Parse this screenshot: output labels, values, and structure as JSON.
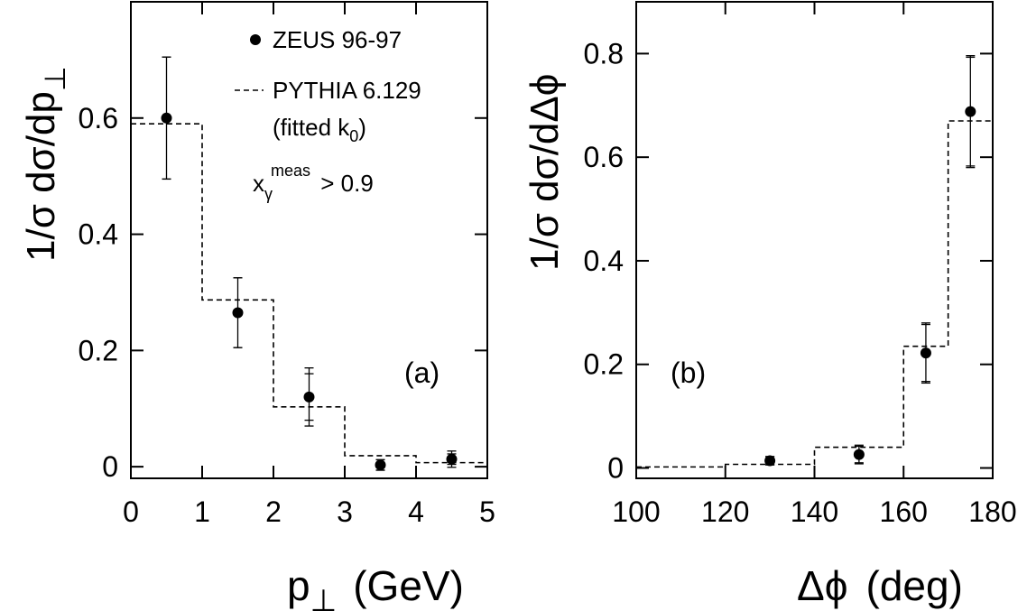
{
  "chart_data": [
    {
      "panel": "(a)",
      "type": "scatter",
      "xlabel": "p",
      "xlabel_sub": "⊥",
      "xlabel_unit": "(GeV)",
      "ylabel": "1/σ dσ/dp",
      "ylabel_sub": "⊥",
      "xlim": [
        0,
        5
      ],
      "ylim": [
        -0.02,
        0.8
      ],
      "xticks": [
        0,
        1,
        2,
        3,
        4,
        5
      ],
      "yticks": [
        0,
        0.2,
        0.4,
        0.6
      ],
      "xtick_labels": [
        "0",
        "1",
        "2",
        "3",
        "4",
        "5"
      ],
      "ytick_labels": [
        "0",
        "0.2",
        "0.4",
        "0.6"
      ],
      "series": [
        {
          "name": "ZEUS 96-97",
          "kind": "points",
          "x": [
            0.5,
            1.5,
            2.5,
            3.5,
            4.5
          ],
          "y": [
            0.6,
            0.265,
            0.12,
            0.003,
            0.013
          ],
          "err_stat": [
            0.105,
            0.06,
            0.04,
            0.009,
            0.009
          ],
          "err_tot": [
            0.105,
            0.06,
            0.05,
            0.009,
            0.014
          ]
        },
        {
          "name": "PYTHIA 6.129",
          "kind": "step",
          "edges": [
            0,
            1,
            2,
            3,
            4,
            5
          ],
          "values": [
            0.59,
            0.287,
            0.103,
            0.019,
            0.007
          ]
        }
      ],
      "legend": {
        "entries": [
          "ZEUS 96-97",
          "PYTHIA 6.129"
        ],
        "note": "(fitted k",
        "note_sub": "0",
        "note_end": ")",
        "cut_x": "x",
        "cut_sub": "γ",
        "cut_sup": "meas",
        "cut_value": " > 0.9"
      }
    },
    {
      "panel": "(b)",
      "type": "scatter",
      "xlabel": "Δϕ",
      "xlabel_unit": "(deg)",
      "ylabel": "1/σ dσ/dΔϕ",
      "xlim": [
        100,
        180
      ],
      "ylim": [
        -0.02,
        0.9
      ],
      "xticks": [
        100,
        120,
        140,
        160,
        180
      ],
      "yticks": [
        0,
        0.2,
        0.4,
        0.6,
        0.8
      ],
      "xtick_labels": [
        "100",
        "120",
        "140",
        "160",
        "180"
      ],
      "ytick_labels": [
        "0",
        "0.2",
        "0.4",
        "0.6",
        "0.8"
      ],
      "series": [
        {
          "name": "ZEUS 96-97",
          "kind": "points",
          "x": [
            130,
            150,
            165,
            175
          ],
          "y": [
            0.014,
            0.026,
            0.222,
            0.688
          ],
          "err_stat": [
            0.008,
            0.016,
            0.055,
            0.105
          ],
          "err_tot": [
            0.008,
            0.018,
            0.058,
            0.108
          ]
        },
        {
          "name": "PYTHIA 6.129",
          "kind": "step",
          "edges": [
            100,
            120,
            140,
            160,
            170,
            180
          ],
          "values": [
            0.002,
            0.007,
            0.04,
            0.235,
            0.67
          ]
        }
      ]
    }
  ]
}
